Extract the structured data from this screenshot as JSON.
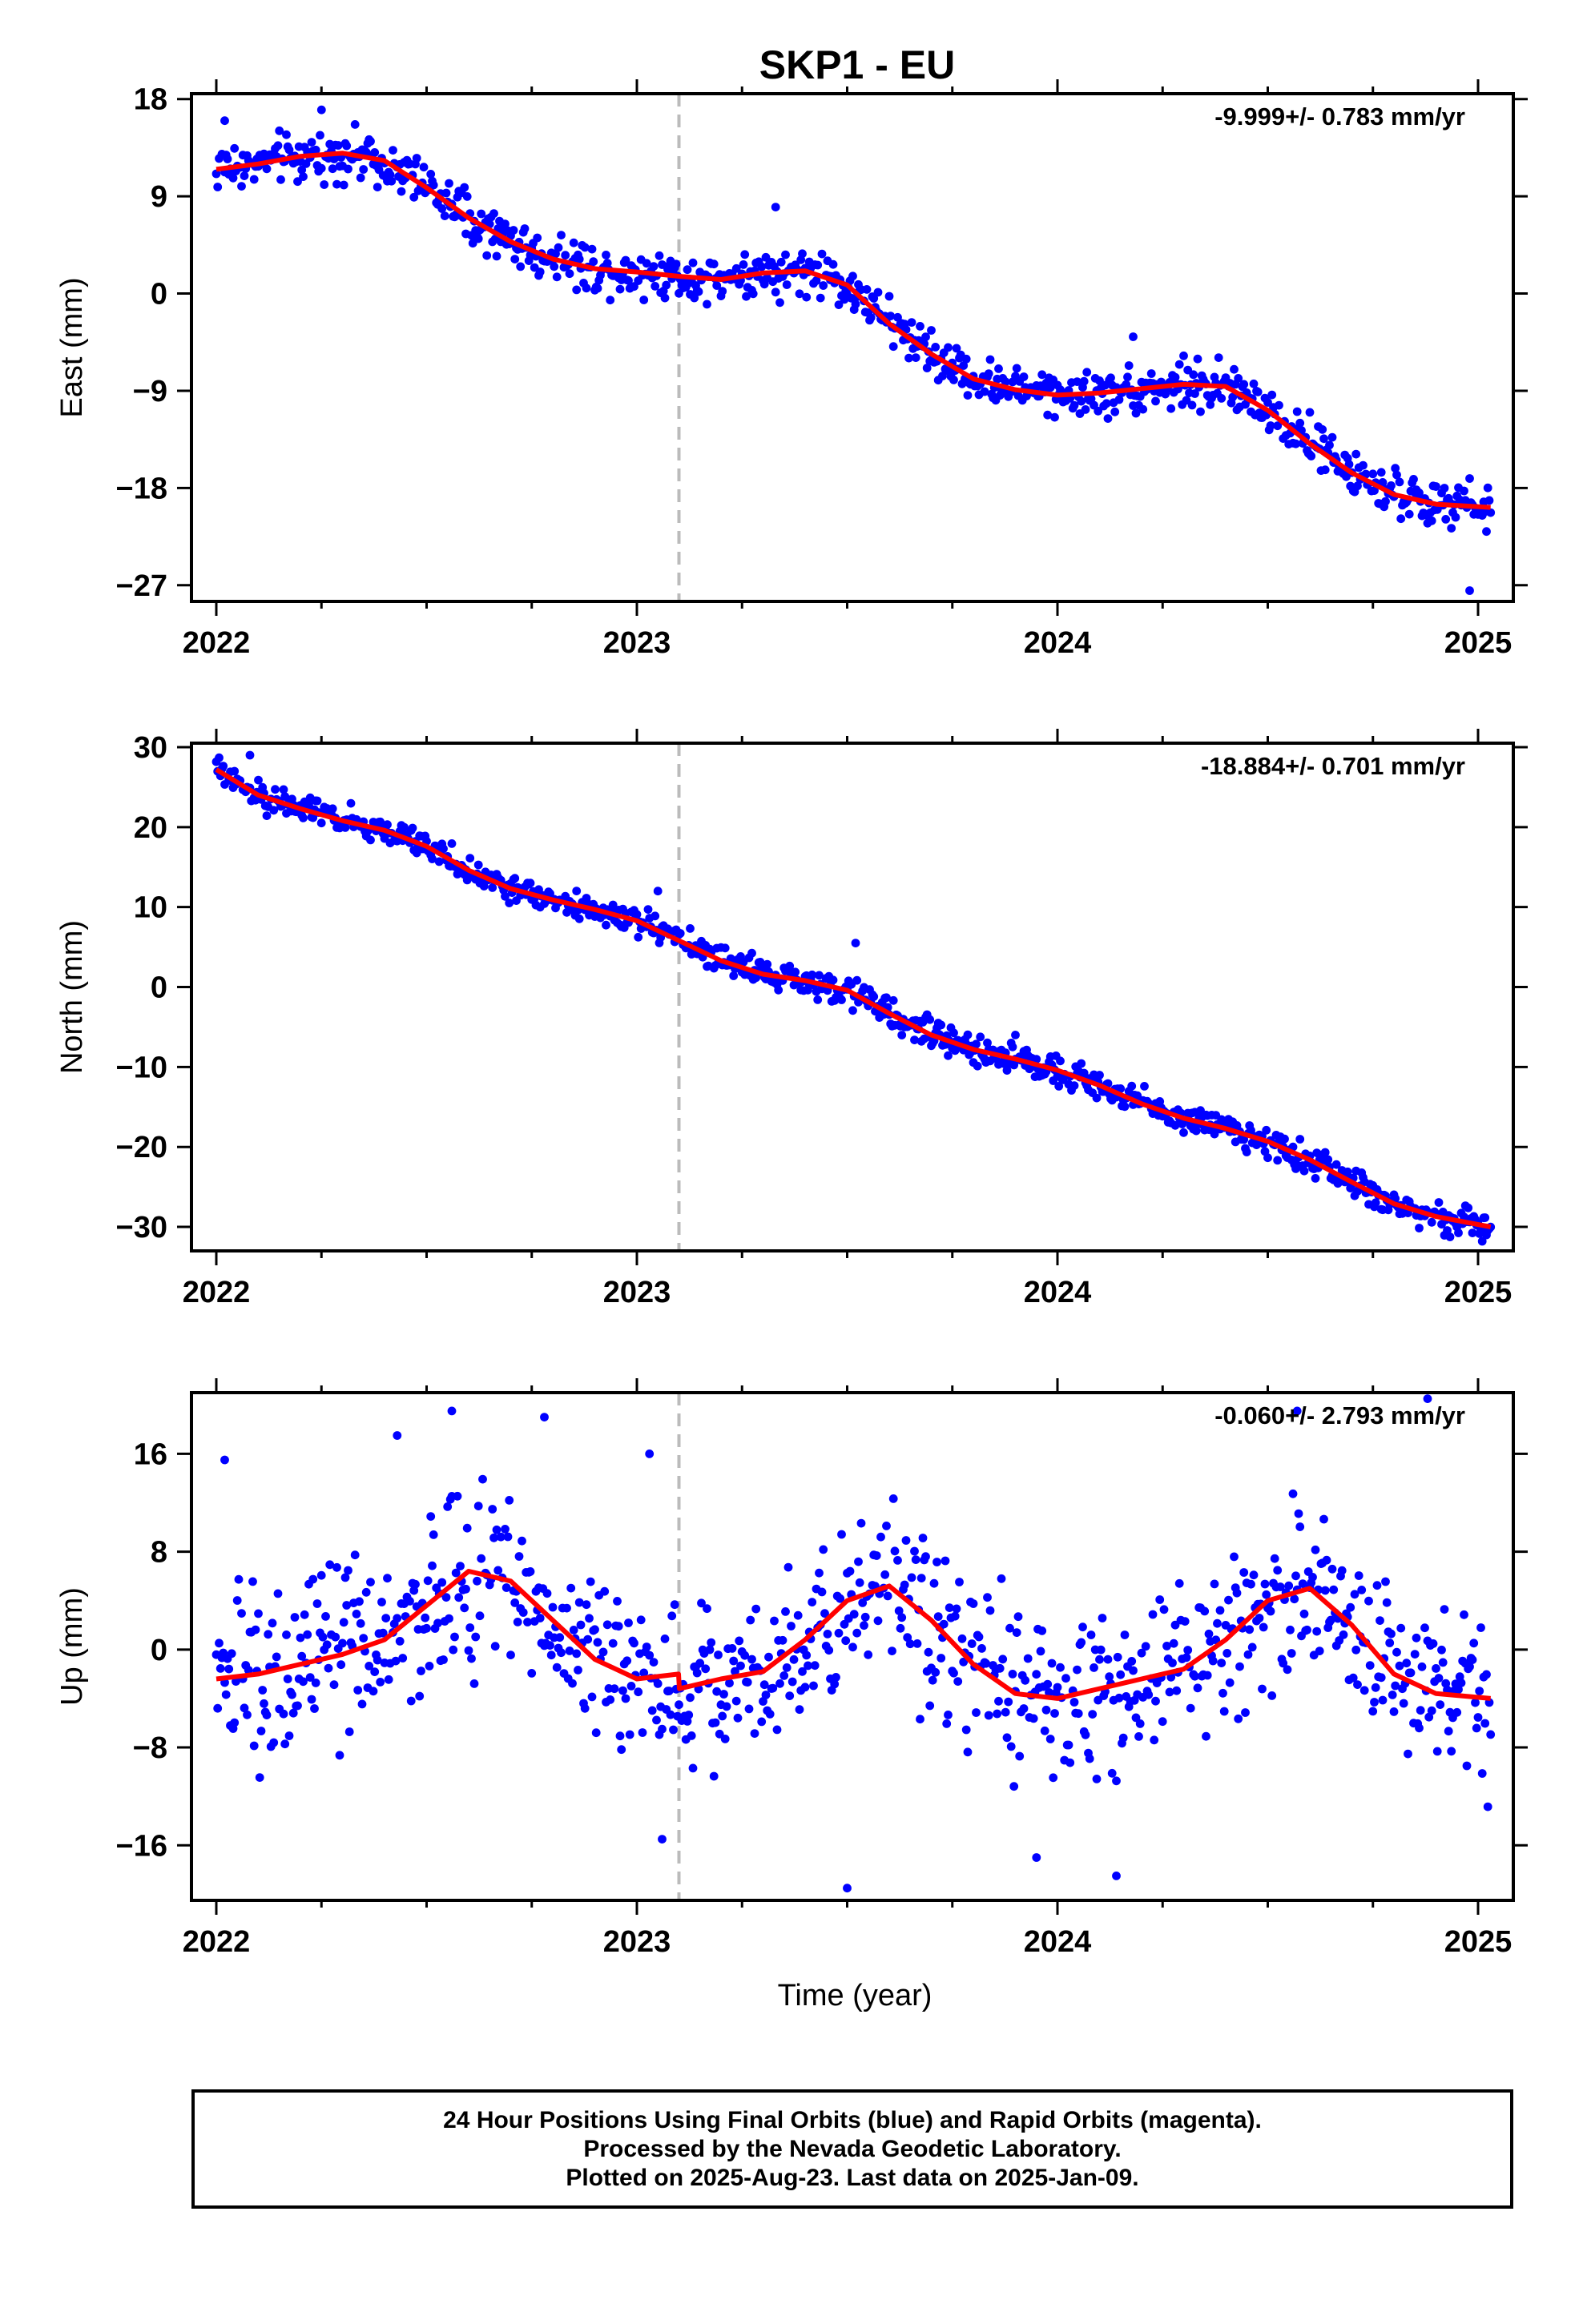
{
  "chart_data": {
    "title": "SKP1 - EU",
    "xlabel": "Time (year)",
    "x_ticks": [
      2022,
      2023,
      2024,
      2025
    ],
    "x_range": [
      2021.94,
      2025.08
    ],
    "offset_marker_year": 2023.1,
    "grid": false,
    "colors": {
      "points": "#0000ff",
      "fit": "#ff0000",
      "offset_line": "#bbbbbb"
    },
    "panels": [
      {
        "type": "scatter",
        "ylabel": "East (mm)",
        "ylim": [
          -28.5,
          18.5
        ],
        "yticks": [
          "18",
          "9",
          "0",
          "−9",
          "−18",
          "−27"
        ],
        "ytick_values": [
          18,
          9,
          0,
          -9,
          -18,
          -27
        ],
        "rate_label": "-9.999+/- 0.783 mm/yr",
        "fit": {
          "x": [
            2022.0,
            2022.1,
            2022.2,
            2022.3,
            2022.4,
            2022.5,
            2022.6,
            2022.7,
            2022.8,
            2022.9,
            2023.0,
            2023.1,
            2023.2,
            2023.3,
            2023.4,
            2023.5,
            2023.6,
            2023.7,
            2023.8,
            2023.9,
            2024.0,
            2024.1,
            2024.2,
            2024.3,
            2024.4,
            2024.5,
            2024.6,
            2024.7,
            2024.8,
            2024.9,
            2025.03
          ],
          "y": [
            11.5,
            12.0,
            12.7,
            13.0,
            12.3,
            9.8,
            7.0,
            4.8,
            3.2,
            2.3,
            2.0,
            1.6,
            1.3,
            1.9,
            2.1,
            0.8,
            -2.8,
            -5.6,
            -7.9,
            -8.9,
            -9.4,
            -9.2,
            -8.8,
            -8.4,
            -8.6,
            -10.8,
            -13.9,
            -16.6,
            -18.6,
            -19.5,
            -19.8
          ]
        },
        "noise": 1.4,
        "outliers": [
          [
            2022.02,
            16
          ],
          [
            2022.25,
            17
          ],
          [
            2023.33,
            8
          ],
          [
            2024.18,
            -4
          ],
          [
            2024.6,
            -11
          ],
          [
            2024.98,
            -27.5
          ]
        ]
      },
      {
        "type": "scatter",
        "ylabel": "North (mm)",
        "ylim": [
          -33,
          30.5
        ],
        "yticks": [
          "30",
          "20",
          "10",
          "0",
          "−10",
          "−20",
          "−30"
        ],
        "ytick_values": [
          30,
          20,
          10,
          0,
          -10,
          -20,
          -30
        ],
        "rate_label": "-18.884+/- 0.701 mm/yr",
        "fit": {
          "x": [
            2022.0,
            2022.1,
            2022.2,
            2022.3,
            2022.4,
            2022.5,
            2022.6,
            2022.7,
            2022.8,
            2022.9,
            2023.0,
            2023.1,
            2023.2,
            2023.3,
            2023.4,
            2023.5,
            2023.6,
            2023.7,
            2023.8,
            2023.9,
            2024.0,
            2024.1,
            2024.2,
            2024.3,
            2024.4,
            2024.5,
            2024.6,
            2024.7,
            2024.8,
            2024.9,
            2025.03
          ],
          "y": [
            27.2,
            24.0,
            22.3,
            20.8,
            19.6,
            17.6,
            14.6,
            12.3,
            10.9,
            9.7,
            8.3,
            5.8,
            3.3,
            1.6,
            0.8,
            -0.4,
            -3.3,
            -6.0,
            -7.8,
            -9.0,
            -10.4,
            -12.3,
            -14.6,
            -16.4,
            -17.7,
            -19.3,
            -21.6,
            -24.4,
            -27.1,
            -28.7,
            -30.0
          ]
        },
        "noise": 1.2,
        "outliers": [
          [
            2022.08,
            29
          ],
          [
            2023.05,
            12
          ],
          [
            2023.52,
            5.5
          ],
          [
            2023.9,
            -6
          ],
          [
            2025.01,
            -31.8
          ]
        ]
      },
      {
        "type": "scatter",
        "ylabel": "Up (mm)",
        "ylim": [
          -20.5,
          21
        ],
        "yticks": [
          "16",
          "8",
          "0",
          "−8",
          "−16"
        ],
        "ytick_values": [
          16,
          8,
          0,
          -8,
          -16
        ],
        "rate_label": "-0.060+/- 2.793 mm/yr",
        "fit": {
          "x": [
            2022.0,
            2022.1,
            2022.2,
            2022.3,
            2022.4,
            2022.5,
            2022.6,
            2022.7,
            2022.8,
            2022.9,
            2023.0,
            2023.099,
            2023.101,
            2023.2,
            2023.3,
            2023.4,
            2023.5,
            2023.6,
            2023.7,
            2023.8,
            2023.9,
            2024.0,
            2024.1,
            2024.2,
            2024.3,
            2024.4,
            2024.5,
            2024.6,
            2024.7,
            2024.8,
            2024.9,
            2025.03
          ],
          "y": [
            -2.4,
            -2.0,
            -1.2,
            -0.4,
            0.8,
            3.6,
            6.4,
            5.6,
            2.4,
            -0.8,
            -2.4,
            -2.0,
            -3.2,
            -2.4,
            -1.8,
            0.8,
            4.0,
            5.2,
            2.4,
            -1.2,
            -3.6,
            -4.0,
            -3.2,
            -2.4,
            -1.6,
            0.8,
            4.0,
            5.0,
            2.0,
            -2.0,
            -3.6,
            -4.0
          ]
        },
        "noise": 4.6,
        "outliers": [
          [
            2022.02,
            15.5
          ],
          [
            2022.43,
            17.5
          ],
          [
            2022.56,
            19.5
          ],
          [
            2022.78,
            19
          ],
          [
            2023.03,
            16
          ],
          [
            2023.06,
            -15.5
          ],
          [
            2023.5,
            -19.5
          ],
          [
            2023.95,
            -17
          ],
          [
            2024.14,
            -18.5
          ],
          [
            2024.57,
            19.5
          ],
          [
            2024.88,
            20.5
          ]
        ]
      }
    ]
  },
  "footer": {
    "line1": "24 Hour Positions Using Final Orbits (blue) and Rapid Orbits (magenta).",
    "line2": "Processed by the Nevada Geodetic Laboratory.",
    "line3": "Plotted on 2025-Aug-23. Last data on 2025-Jan-09."
  }
}
